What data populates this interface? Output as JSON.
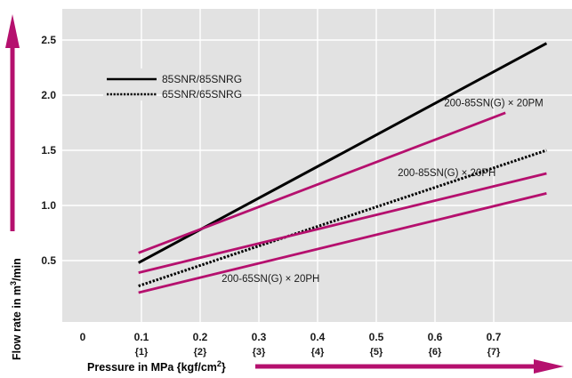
{
  "chart_data": {
    "type": "line",
    "xlabel": "Pressure in MPa {kgf/cm",
    "xlabel_sup": "2",
    "xlabel_end": "}",
    "ylabel": "Flow rate in m",
    "ylabel_sup": "3",
    "ylabel_end": "/min",
    "xlim": [
      0,
      0.8
    ],
    "ylim": [
      0,
      2.75
    ],
    "x_ticks": [
      {
        "value": 0,
        "label": "0",
        "sub": ""
      },
      {
        "value": 0.1,
        "label": "0.1",
        "sub": "{1}"
      },
      {
        "value": 0.2,
        "label": "0.2",
        "sub": "{2}"
      },
      {
        "value": 0.3,
        "label": "0.3",
        "sub": "{3}"
      },
      {
        "value": 0.4,
        "label": "0.4",
        "sub": "{4}"
      },
      {
        "value": 0.5,
        "label": "0.5",
        "sub": "{5}"
      },
      {
        "value": 0.6,
        "label": "0.6",
        "sub": "{6}"
      },
      {
        "value": 0.7,
        "label": "0.7",
        "sub": "{7}"
      }
    ],
    "y_ticks": [
      {
        "value": 0.5,
        "label": "0.5"
      },
      {
        "value": 1.0,
        "label": "1.0"
      },
      {
        "value": 1.5,
        "label": "1.5"
      },
      {
        "value": 2.0,
        "label": "2.0"
      },
      {
        "value": 2.5,
        "label": "2.5"
      }
    ],
    "grid": true,
    "legend_position": "top-left",
    "series": [
      {
        "name": "85SNR/85SNRG",
        "style": "solid",
        "color": "#000000",
        "x": [
          0.095,
          0.79
        ],
        "y": [
          0.48,
          2.47
        ]
      },
      {
        "name": "65SNR/65SNRG",
        "style": "dotted",
        "color": "#000000",
        "x": [
          0.095,
          0.79
        ],
        "y": [
          0.27,
          1.5
        ]
      },
      {
        "label": "200-85SN(G) x 20PM",
        "style": "solid",
        "color": "#b5106e",
        "x": [
          0.095,
          0.72
        ],
        "y": [
          0.57,
          1.84
        ]
      },
      {
        "label": "200-85SN(G) x 20PH",
        "style": "solid",
        "color": "#b5106e",
        "x": [
          0.095,
          0.79
        ],
        "y": [
          0.39,
          1.29
        ]
      },
      {
        "label": "200-65SN(G) x 20PH",
        "style": "solid",
        "color": "#b5106e",
        "x": [
          0.095,
          0.79
        ],
        "y": [
          0.21,
          1.11
        ]
      }
    ],
    "annotations": [
      {
        "text": "200-85SN(G) × 20PM",
        "x": 0.7,
        "y": 1.93
      },
      {
        "text": "200-85SN(G) × 20PH",
        "x": 0.62,
        "y": 1.3
      },
      {
        "text": "200-65SN(G) × 20PH",
        "x": 0.32,
        "y": 0.34
      }
    ],
    "colors": {
      "background": "#e2e2e2",
      "grid": "#ffffff",
      "accent": "#b5106e",
      "black": "#000000"
    }
  }
}
